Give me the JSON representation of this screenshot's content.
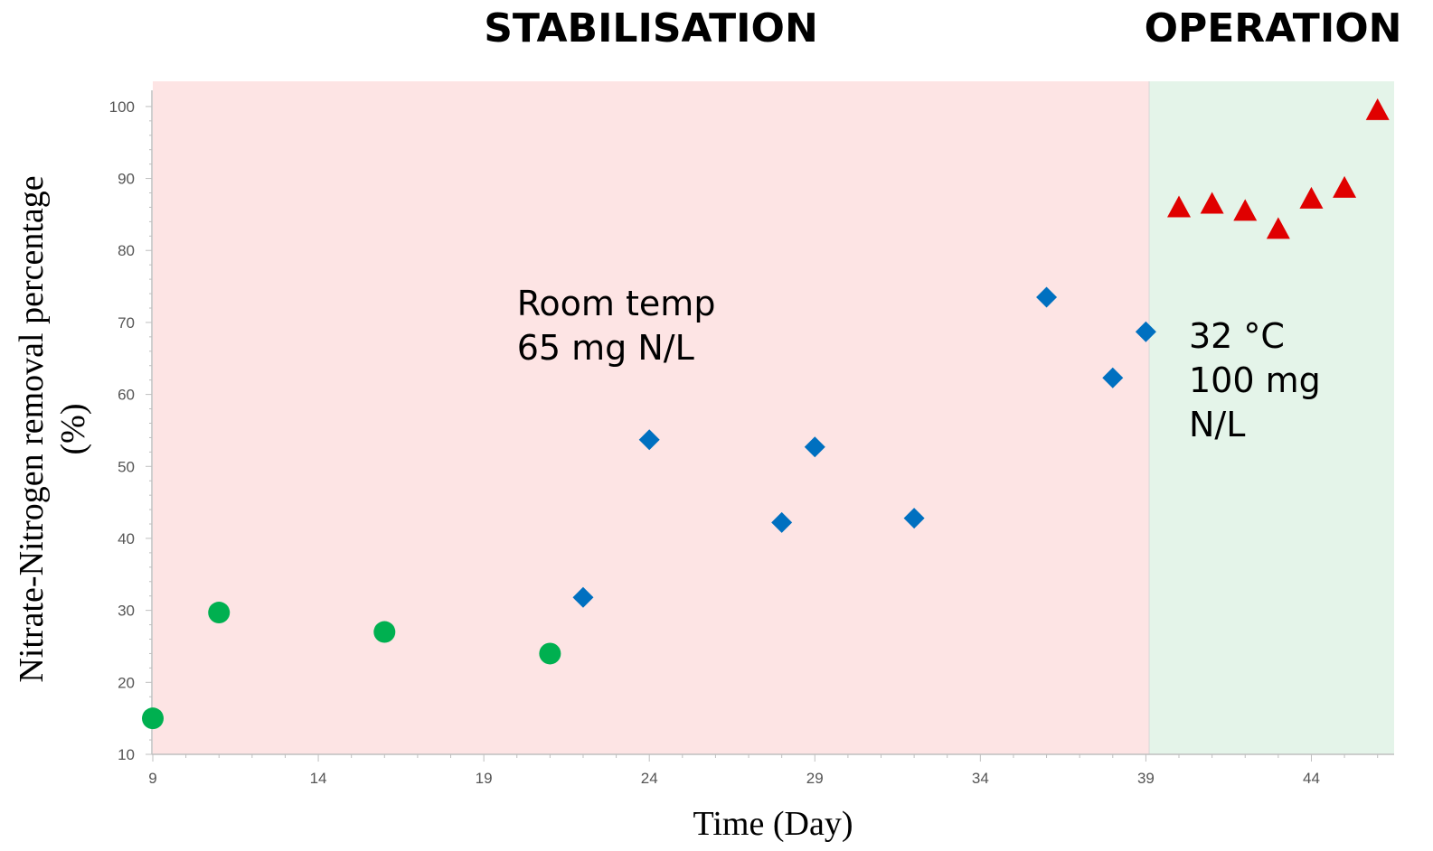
{
  "chart_data": {
    "type": "scatter",
    "xlabel": "Time (Day)",
    "ylabel_lines": [
      "Nitrate-Nitrogen removal percentage",
      "(%)"
    ],
    "xlim": [
      9,
      46.5
    ],
    "ylim": [
      10,
      103.5
    ],
    "xticks": [
      9,
      14,
      19,
      24,
      29,
      34,
      39,
      44
    ],
    "yticks": [
      10,
      20,
      30,
      40,
      50,
      60,
      70,
      80,
      90,
      100
    ],
    "regions": [
      {
        "label": "STABILISATION",
        "x_start": 9,
        "x_end": 39.1,
        "color": "#fde4e4"
      },
      {
        "label": "OPERATION",
        "x_start": 39.1,
        "x_end": 46.5,
        "color": "#e4f4e9"
      }
    ],
    "annotations": [
      {
        "lines": [
          "Room temp",
          "65 mg N/L"
        ],
        "x": 20,
        "y": 71
      },
      {
        "lines": [
          "32 °C",
          "100 mg",
          "N/L"
        ],
        "x": 40.3,
        "y": 66.5
      }
    ],
    "series": [
      {
        "marker": "circle",
        "color": "#00b050",
        "points": [
          [
            9,
            15
          ],
          [
            11,
            29.7
          ],
          [
            16,
            27
          ],
          [
            21,
            24
          ]
        ]
      },
      {
        "marker": "diamond",
        "color": "#0070c0",
        "points": [
          [
            22,
            31.8
          ],
          [
            24,
            53.7
          ],
          [
            28,
            42.2
          ],
          [
            29,
            52.7
          ],
          [
            32,
            42.8
          ],
          [
            36,
            73.5
          ],
          [
            38,
            62.3
          ],
          [
            39,
            68.7
          ]
        ]
      },
      {
        "marker": "triangle",
        "color": "#e00000",
        "points": [
          [
            40,
            86
          ],
          [
            41,
            86.5
          ],
          [
            42,
            85.5
          ],
          [
            43,
            83
          ],
          [
            44,
            87.2
          ],
          [
            45,
            88.7
          ],
          [
            46,
            99.5
          ]
        ]
      }
    ]
  }
}
